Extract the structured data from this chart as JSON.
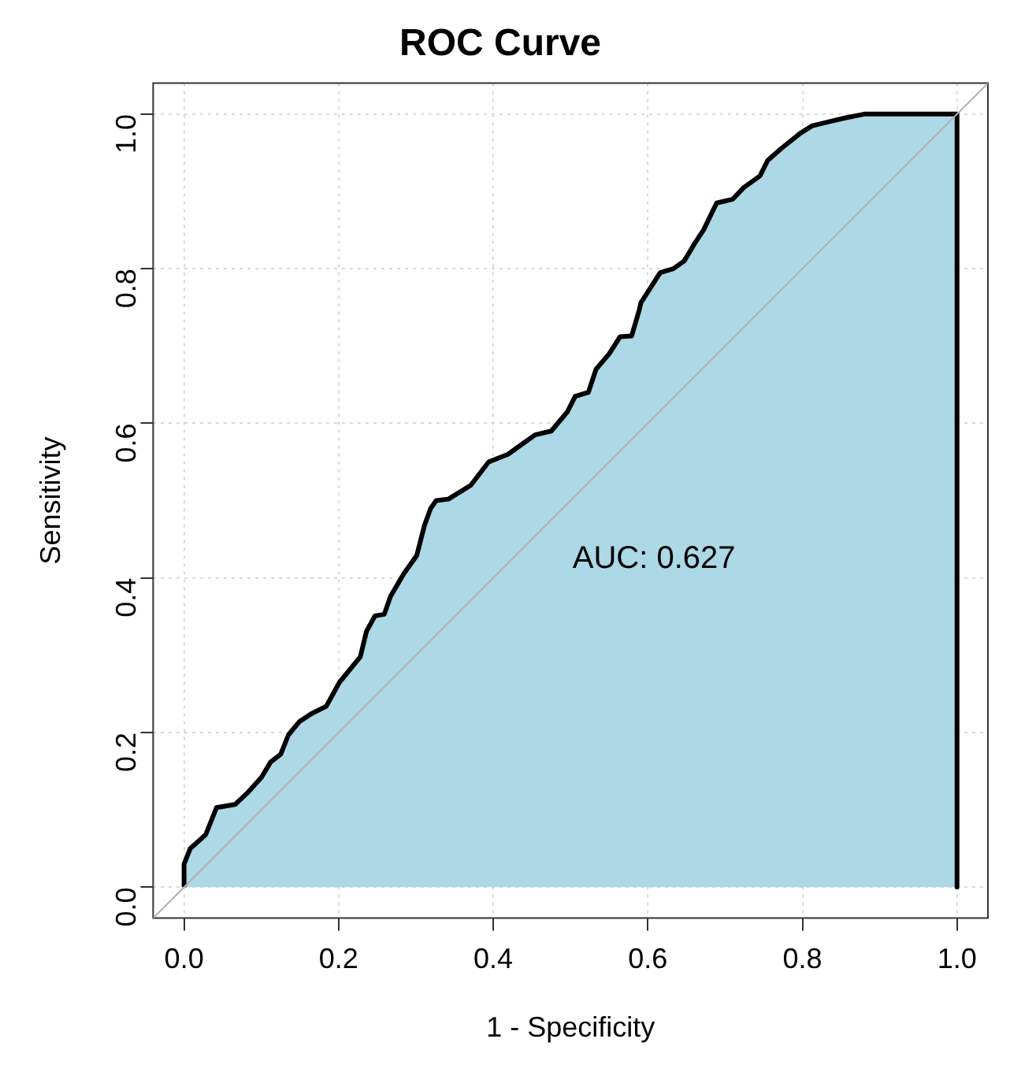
{
  "chart_data": {
    "type": "area",
    "title": "ROC Curve",
    "xlabel": "1 - Specificity",
    "ylabel": "Sensitivity",
    "series": [
      {
        "color": "#add8e6",
        "x": [
          0,
          0,
          0.008,
          0.028,
          0.042,
          0.066,
          0.083,
          0.1,
          0.112,
          0.125,
          0.135,
          0.149,
          0.164,
          0.184,
          0.201,
          0.228,
          0.236,
          0.247,
          0.259,
          0.267,
          0.284,
          0.301,
          0.311,
          0.319,
          0.326,
          0.342,
          0.371,
          0.394,
          0.419,
          0.44,
          0.454,
          0.475,
          0.496,
          0.506,
          0.523,
          0.533,
          0.55,
          0.564,
          0.579,
          0.589,
          0.591,
          0.616,
          0.633,
          0.647,
          0.662,
          0.672,
          0.689,
          0.71,
          0.724,
          0.745,
          0.755,
          0.772,
          0.797,
          0.813,
          0.834,
          0.855,
          0.88,
          1,
          1
        ],
        "values": [
          0,
          0.03,
          0.05,
          0.068,
          0.103,
          0.107,
          0.123,
          0.142,
          0.162,
          0.172,
          0.197,
          0.214,
          0.224,
          0.234,
          0.265,
          0.298,
          0.331,
          0.351,
          0.353,
          0.376,
          0.405,
          0.429,
          0.468,
          0.49,
          0.5,
          0.502,
          0.52,
          0.55,
          0.56,
          0.575,
          0.585,
          0.59,
          0.615,
          0.635,
          0.64,
          0.67,
          0.69,
          0.712,
          0.713,
          0.747,
          0.756,
          0.795,
          0.8,
          0.81,
          0.835,
          0.85,
          0.885,
          0.89,
          0.905,
          0.92,
          0.94,
          0.955,
          0.975,
          0.985,
          0.99,
          0.995,
          1,
          1,
          0
        ]
      },
      {
        "type": "line",
        "color": "#b0b0b0",
        "x": [
          -0.04,
          1.04
        ],
        "values": [
          -0.04,
          1.04
        ]
      }
    ],
    "xlim": [
      -0.04,
      1.04
    ],
    "ylim": [
      -0.04,
      1.04
    ],
    "xticks": [
      {
        "value": 0,
        "label": "0.0"
      },
      0.2,
      0.4,
      0.6,
      0.8,
      {
        "value": 1,
        "label": "1.0"
      }
    ],
    "yticks": [
      {
        "value": 0,
        "label": "0.0"
      },
      0.2,
      0.4,
      0.6,
      0.8,
      {
        "value": 1,
        "label": "1.0"
      }
    ],
    "grid": true,
    "legend": false,
    "marker": "none",
    "annotations": [
      "AUC: 0.627"
    ]
  }
}
